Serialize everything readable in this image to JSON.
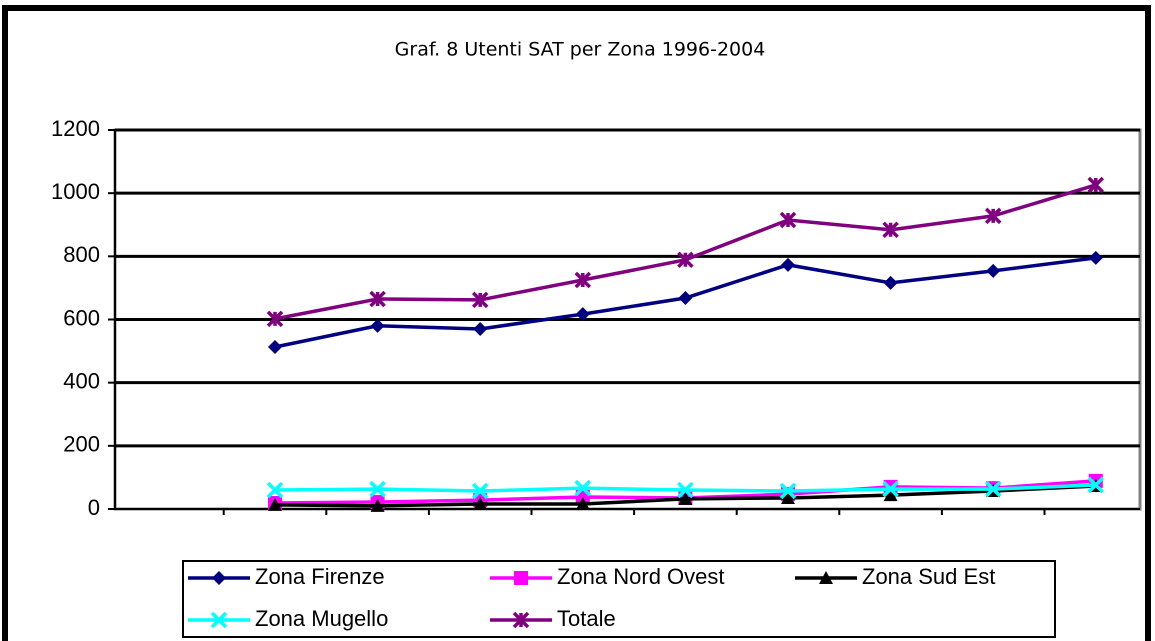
{
  "chart_data": {
    "type": "line",
    "title": "Graf. 8 Utenti SAT per Zona 1996-2004",
    "categories": [
      null,
      null,
      null,
      null,
      null,
      null,
      null,
      null,
      null
    ],
    "series": [
      {
        "name": "Zona Firenze",
        "color": "#000080",
        "marker": "diamond",
        "values": [
          513,
          580,
          570,
          617,
          668,
          773,
          716,
          754,
          795
        ]
      },
      {
        "name": "Zona Nord Ovest",
        "color": "#ff00ff",
        "marker": "square",
        "values": [
          19,
          22,
          28,
          38,
          35,
          47,
          70,
          66,
          89
        ]
      },
      {
        "name": "Zona Sud Est",
        "color": "#000000",
        "marker": "triangle",
        "values": [
          13,
          10,
          16,
          16,
          32,
          35,
          44,
          57,
          73
        ]
      },
      {
        "name": "Zona Mugello",
        "color": "#00ffff",
        "marker": "x",
        "values": [
          60,
          63,
          57,
          66,
          60,
          57,
          63,
          63,
          76
        ]
      },
      {
        "name": "Totale",
        "color": "#800080",
        "marker": "star",
        "values": [
          602,
          665,
          662,
          725,
          789,
          915,
          884,
          928,
          1026
        ]
      }
    ],
    "ylim": [
      0,
      1200
    ],
    "yticks": [
      0,
      200,
      400,
      600,
      800,
      1000,
      1200
    ],
    "grid": true
  }
}
